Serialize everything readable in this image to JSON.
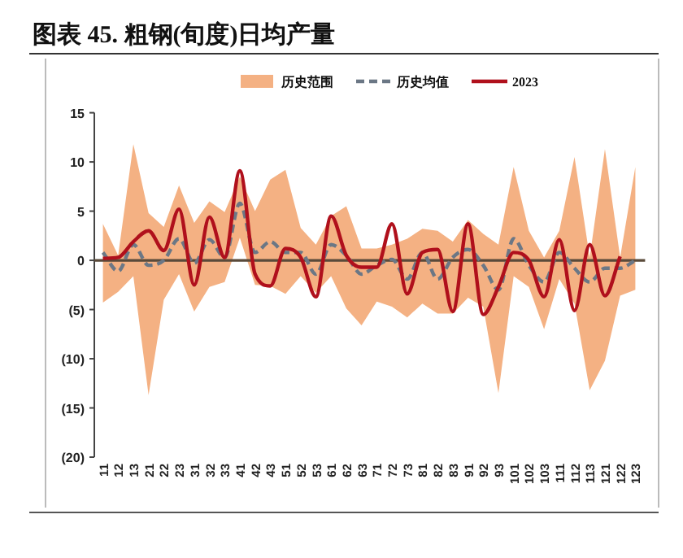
{
  "chart_data": {
    "type": "line",
    "title": "图表 45. 粗钢(旬度)日均产量",
    "categories": [
      "11",
      "12",
      "13",
      "21",
      "22",
      "23",
      "31",
      "32",
      "33",
      "41",
      "42",
      "43",
      "51",
      "52",
      "53",
      "61",
      "62",
      "63",
      "71",
      "72",
      "73",
      "81",
      "82",
      "83",
      "91",
      "92",
      "93",
      "101",
      "102",
      "103",
      "111",
      "112",
      "113",
      "121",
      "122",
      "123"
    ],
    "series": [
      {
        "name": "历史均值",
        "color": "#6b7785",
        "line_style": "dashed",
        "values": [
          0.8,
          -1.1,
          1.6,
          -0.5,
          0,
          2.2,
          -0.3,
          2.1,
          0.3,
          5.8,
          0.8,
          1.9,
          0.8,
          0.8,
          -1.4,
          1.6,
          0.5,
          -1.4,
          -0.5,
          0.1,
          -1.9,
          0.8,
          -1.9,
          0.3,
          1.1,
          -0.5,
          -3,
          2.2,
          -0.5,
          -2.2,
          0.8,
          -0.8,
          -2.2,
          -0.8,
          -0.8,
          0
        ],
        "upper": [
          3.7,
          0.5,
          11.8,
          4.8,
          3.4,
          7.6,
          3.8,
          6,
          4.9,
          8.5,
          5,
          8.2,
          9.2,
          3.3,
          1.6,
          4.5,
          5.5,
          1.2,
          1.2,
          1.6,
          2.2,
          3.2,
          3,
          1.9,
          4.1,
          2.7,
          1.6,
          9.5,
          3,
          0.3,
          3,
          10.5,
          0.3,
          11.3,
          0.3,
          9.5
        ],
        "lower": [
          -4.3,
          -3.2,
          -1.6,
          -13.7,
          -4,
          -1.4,
          -5.2,
          -2.7,
          -2.2,
          2.3,
          -2.5,
          -2.6,
          -3.4,
          -1.6,
          -3.3,
          -1.6,
          -4.9,
          -6.6,
          -4.2,
          -4.7,
          -5.8,
          -4.4,
          -5.4,
          -5.4,
          -3.8,
          -4.7,
          -13.5,
          -1.6,
          -2.7,
          -7,
          -1.9,
          -4.4,
          -13.2,
          -10.2,
          -3.6,
          -3
        ]
      },
      {
        "name": "2023",
        "color": "#b0101c",
        "line_style": "solid",
        "values": [
          0.2,
          0.3,
          1.9,
          3,
          1,
          5.2,
          -2.5,
          4.4,
          0.3,
          9.1,
          -1.4,
          -2.6,
          1.2,
          0.3,
          -3.7,
          4.5,
          0.5,
          -0.7,
          -0.7,
          3.7,
          -3.4,
          0.8,
          1.1,
          -5.2,
          3.7,
          -5.5,
          -2.7,
          0.8,
          0,
          -3.7,
          2.1,
          -5.1,
          1.6,
          -3.6,
          0.4,
          null
        ]
      }
    ],
    "ylim": [
      -20,
      15
    ],
    "yticks": [
      15,
      10,
      5,
      0,
      {
        "value": -5,
        "label": "(5)"
      },
      {
        "value": -10,
        "label": "(10)"
      },
      {
        "value": -15,
        "label": "(15)"
      },
      {
        "value": -20,
        "label": "(20)"
      }
    ],
    "annotations": [
      "历史范围"
    ],
    "legend": "top",
    "marker": "none"
  }
}
